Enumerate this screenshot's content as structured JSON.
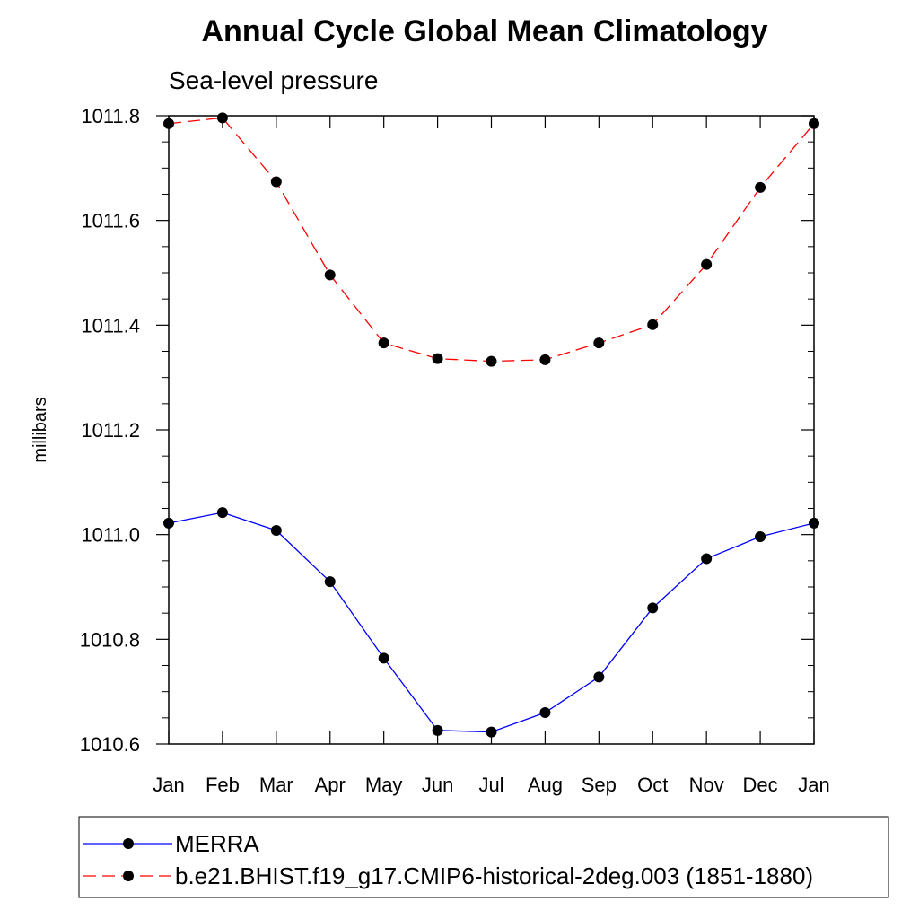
{
  "chart_data": {
    "type": "line",
    "title": "Annual Cycle Global Mean Climatology",
    "subtitle": "Sea-level pressure",
    "xlabel": "",
    "ylabel": "millibars",
    "categories": [
      "Jan",
      "Feb",
      "Mar",
      "Apr",
      "May",
      "Jun",
      "Jul",
      "Aug",
      "Sep",
      "Oct",
      "Nov",
      "Dec",
      "Jan"
    ],
    "ylim": [
      1010.6,
      1011.8
    ],
    "yticks": [
      "1010.6",
      "1010.8",
      "1011.0",
      "1011.2",
      "1011.4",
      "1011.6",
      "1011.8"
    ],
    "legend_position": "bottom",
    "series": [
      {
        "name": "MERRA",
        "color": "#0000ff",
        "dash": "solid",
        "values": [
          1011.022,
          1011.042,
          1011.008,
          1010.91,
          1010.764,
          1010.626,
          1010.623,
          1010.66,
          1010.728,
          1010.86,
          1010.954,
          1010.996,
          1011.022
        ]
      },
      {
        "name": "b.e21.BHIST.f19_g17.CMIP6-historical-2deg.003 (1851-1880)",
        "color": "#ff0000",
        "dash": "dashed",
        "values": [
          1011.785,
          1011.796,
          1011.674,
          1011.496,
          1011.366,
          1011.336,
          1011.331,
          1011.334,
          1011.366,
          1011.401,
          1011.516,
          1011.663,
          1011.785
        ]
      }
    ]
  }
}
